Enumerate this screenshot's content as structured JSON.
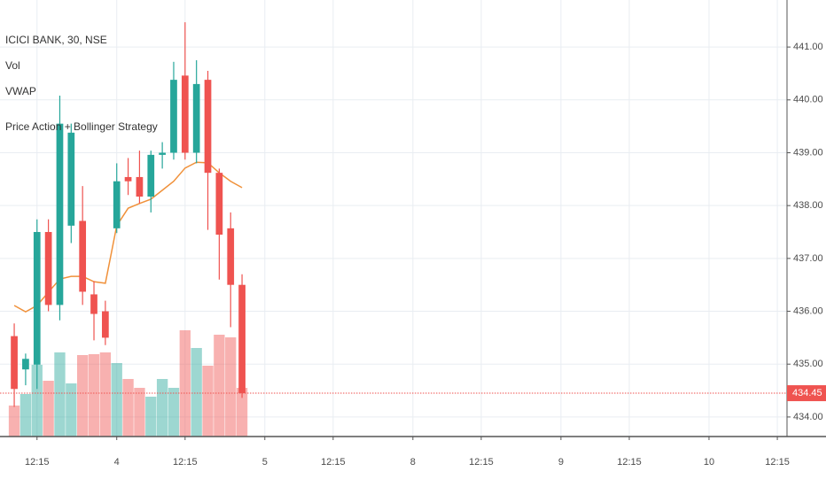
{
  "chart_data": {
    "type": "candlestick",
    "title": "ICICI BANK, 30, NSE",
    "indicators": [
      "Vol",
      "VWAP",
      "Price Action + Bollinger Strategy"
    ],
    "x": [
      4,
      5,
      6,
      7,
      8,
      9,
      10,
      11,
      12,
      13,
      14,
      15,
      16,
      17,
      18,
      19,
      20,
      21,
      22,
      23,
      24
    ],
    "open": [
      435.53,
      434.9,
      434.99,
      437.5,
      436.12,
      437.62,
      437.71,
      436.32,
      436.0,
      437.57,
      438.54,
      438.54,
      438.17,
      438.96,
      439.0,
      440.46,
      439.0,
      440.38,
      438.62,
      437.57,
      436.5
    ],
    "high": [
      435.77,
      435.2,
      437.74,
      437.74,
      440.08,
      439.55,
      438.37,
      436.57,
      436.2,
      438.8,
      438.9,
      439.04,
      439.04,
      439.2,
      440.72,
      441.47,
      440.75,
      440.55,
      438.7,
      437.87,
      436.7
    ],
    "low": [
      434.19,
      434.6,
      434.53,
      436.0,
      435.83,
      437.29,
      436.12,
      435.45,
      435.36,
      437.48,
      438.2,
      438.04,
      437.87,
      438.7,
      438.87,
      438.87,
      438.8,
      437.54,
      436.6,
      435.7,
      434.36
    ],
    "close": [
      434.53,
      435.1,
      437.5,
      436.12,
      439.55,
      439.38,
      436.37,
      435.95,
      435.5,
      438.46,
      438.46,
      438.17,
      438.96,
      439.0,
      440.38,
      439.0,
      440.3,
      438.62,
      437.45,
      436.5,
      434.45
    ],
    "volume": [
      35,
      48,
      81,
      63,
      95,
      60,
      92,
      93,
      95,
      83,
      65,
      55,
      45,
      65,
      55,
      120,
      100,
      80,
      115,
      112,
      55
    ],
    "volume_ylim": [
      0,
      493
    ],
    "vwap": [
      436.11,
      435.99,
      436.11,
      436.36,
      436.61,
      436.66,
      436.66,
      436.56,
      436.53,
      437.62,
      437.95,
      438.04,
      438.12,
      438.29,
      438.46,
      438.71,
      438.82,
      438.81,
      438.62,
      438.46,
      438.34
    ],
    "up_color": "#26a69a",
    "down_color": "#ef5350",
    "vwap_color": "#f0913a",
    "last_price": 434.45,
    "xlim": [
      2.75,
      71.85
    ],
    "xticks": [
      {
        "value": 6,
        "label": "12:15"
      },
      {
        "value": 13,
        "label": "4"
      },
      {
        "value": 19,
        "label": "12:15"
      },
      {
        "value": 26,
        "label": "5"
      },
      {
        "value": 32,
        "label": "12:15"
      },
      {
        "value": 39,
        "label": "8"
      },
      {
        "value": 45,
        "label": "12:15"
      },
      {
        "value": 52,
        "label": "9"
      },
      {
        "value": 58,
        "label": "12:15"
      },
      {
        "value": 65,
        "label": "10"
      },
      {
        "value": 71,
        "label": "12:15"
      }
    ],
    "ylim": [
      433.63,
      441.89
    ],
    "yticks": [
      {
        "value": 434,
        "label": "434.00"
      },
      {
        "value": 435,
        "label": "435.00"
      },
      {
        "value": 436,
        "label": "436.00"
      },
      {
        "value": 437,
        "label": "437.00"
      },
      {
        "value": 438,
        "label": "438.00"
      },
      {
        "value": 439,
        "label": "439.00"
      },
      {
        "value": 440,
        "label": "440.00"
      },
      {
        "value": 441,
        "label": "441.00"
      }
    ],
    "grid": true
  }
}
